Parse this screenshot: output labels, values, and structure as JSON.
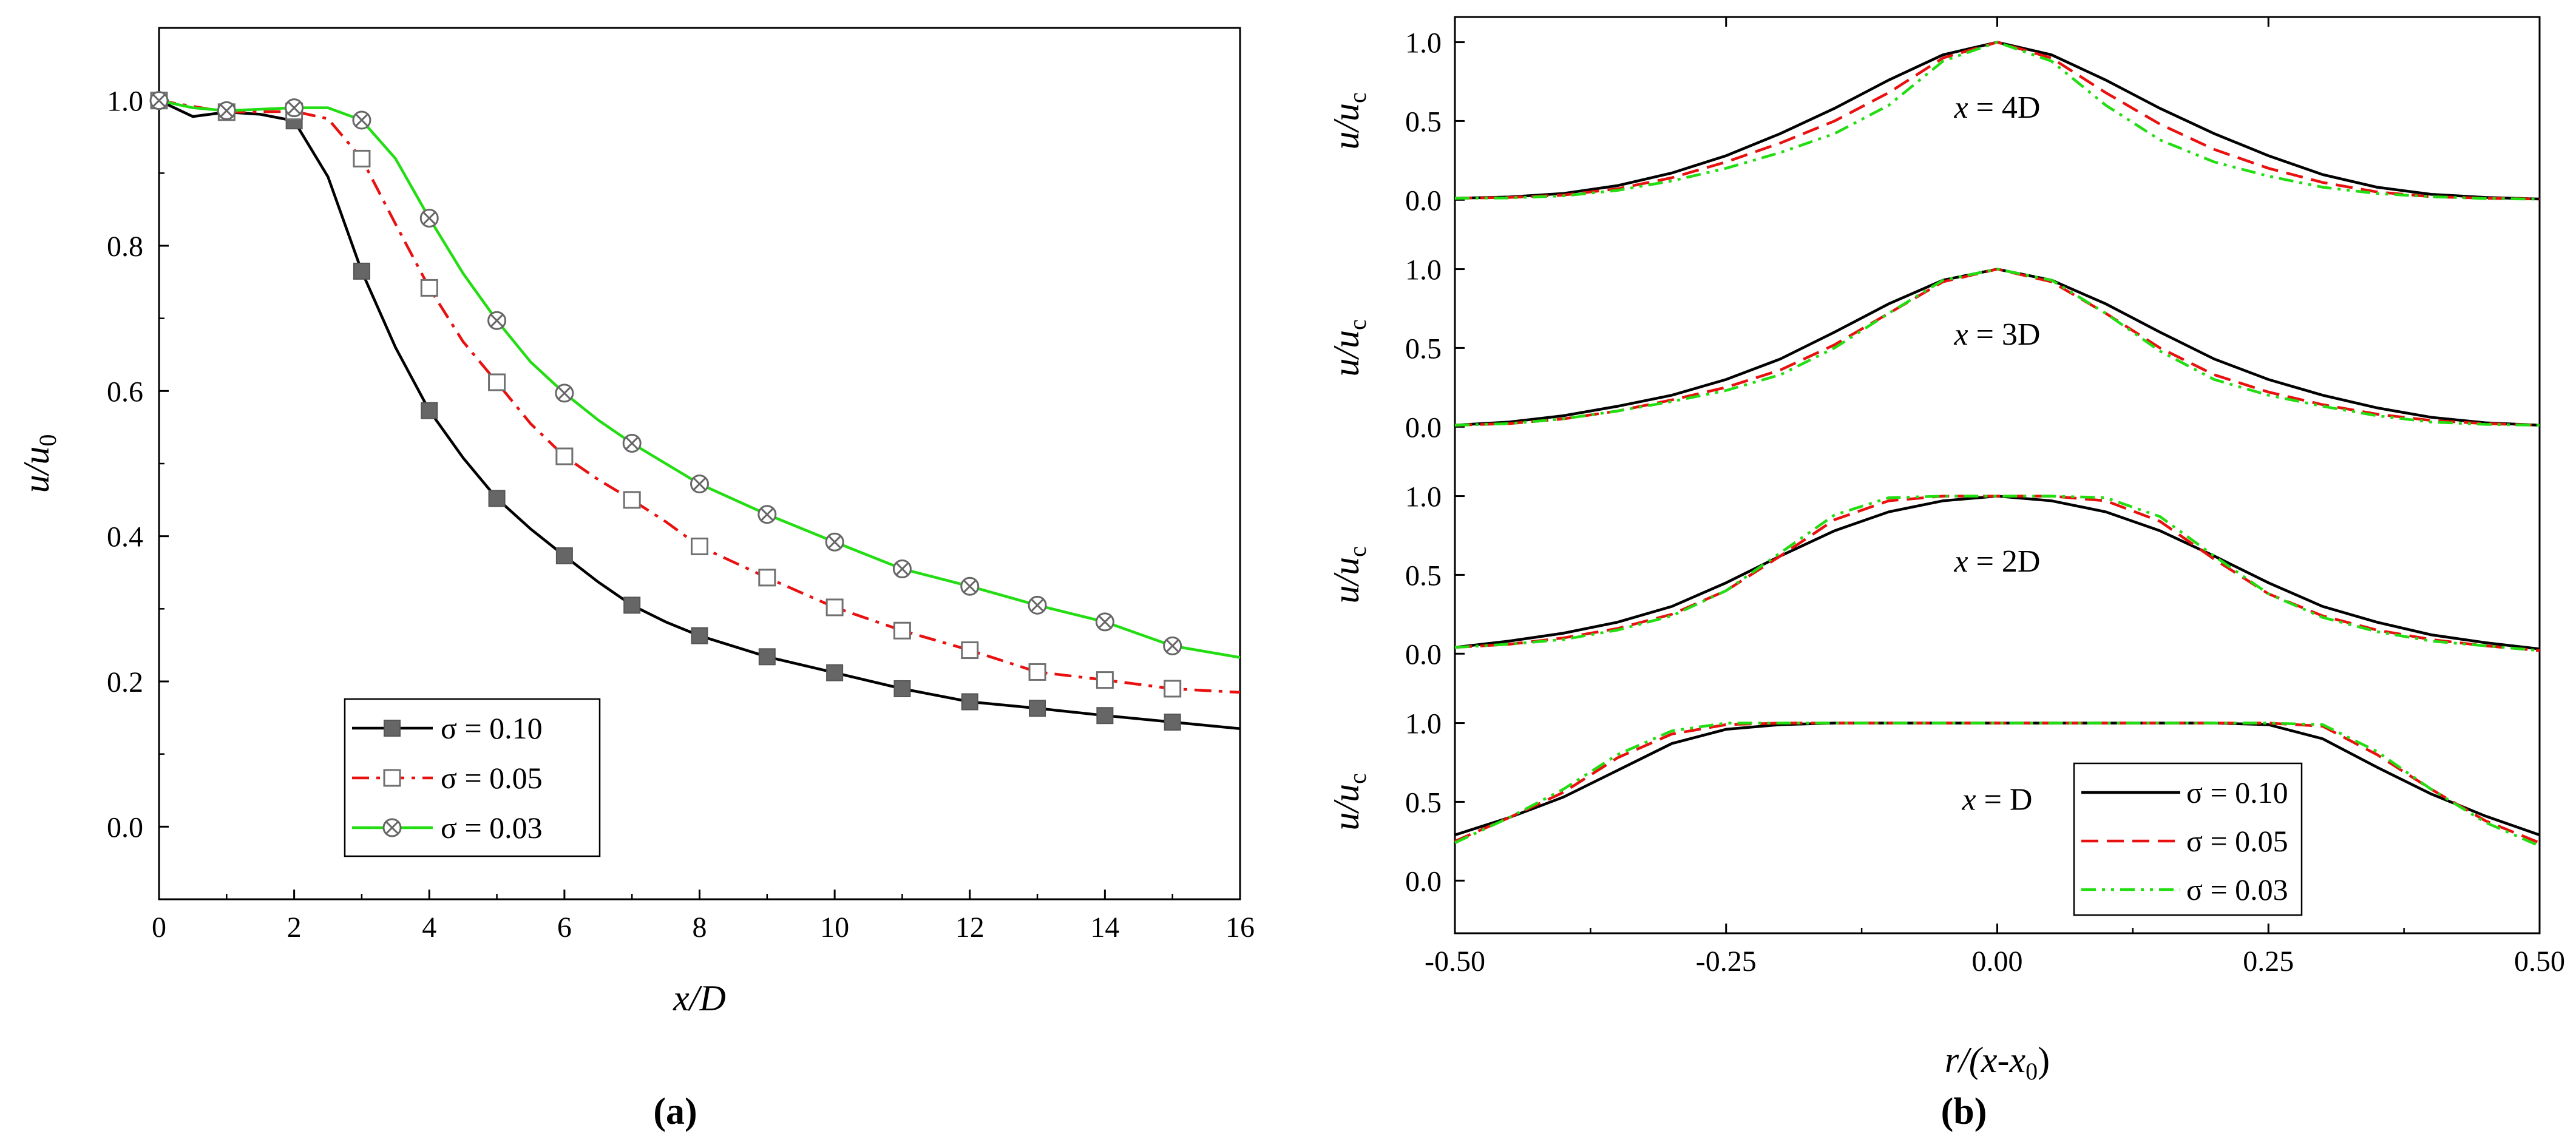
{
  "chart_data": [
    {
      "type": "line",
      "caption": "(a)",
      "xlabel": "x/D",
      "ylabel": "u/u0",
      "xlim": [
        0,
        16
      ],
      "ylim": [
        -0.1,
        1.1
      ],
      "xticks": [
        "0",
        "2",
        "4",
        "6",
        "8",
        "10",
        "12",
        "14",
        "16"
      ],
      "yticks": [
        "0.0",
        "0.2",
        "0.4",
        "0.6",
        "0.8",
        "1.0"
      ],
      "legend_position": "bottom-left",
      "series": [
        {
          "name": "σ = 0.10",
          "color": "#000000",
          "dash": "solid",
          "marker": "filled-square",
          "x": [
            0,
            0.5,
            1,
            1.5,
            2,
            2.5,
            3,
            3.5,
            4,
            4.5,
            5,
            5.5,
            6,
            6.5,
            7,
            7.5,
            8,
            9,
            10,
            11,
            12,
            13,
            14,
            15,
            16
          ],
          "y": [
            1.0,
            0.978,
            0.984,
            0.981,
            0.972,
            0.895,
            0.765,
            0.66,
            0.573,
            0.508,
            0.452,
            0.41,
            0.373,
            0.337,
            0.305,
            0.282,
            0.263,
            0.234,
            0.212,
            0.19,
            0.172,
            0.163,
            0.153,
            0.144,
            0.135
          ],
          "marker_x": [
            0,
            1,
            2,
            3,
            4,
            5,
            6,
            7,
            8,
            9,
            10,
            11,
            12,
            13,
            14,
            15
          ],
          "marker_y": [
            1.0,
            0.984,
            0.972,
            0.765,
            0.573,
            0.452,
            0.373,
            0.305,
            0.263,
            0.234,
            0.212,
            0.19,
            0.172,
            0.163,
            0.153,
            0.144
          ]
        },
        {
          "name": "σ = 0.05",
          "color": "#e8110f",
          "dash": "dash-dot",
          "marker": "open-square",
          "x": [
            0,
            1,
            2,
            2.5,
            3,
            3.5,
            4,
            4.5,
            5,
            5.5,
            6,
            6.5,
            7,
            7.5,
            8,
            9,
            10,
            11,
            12,
            13,
            14,
            15,
            16
          ],
          "y": [
            1.0,
            0.984,
            0.985,
            0.975,
            0.92,
            0.83,
            0.742,
            0.668,
            0.612,
            0.555,
            0.51,
            0.478,
            0.45,
            0.42,
            0.386,
            0.343,
            0.302,
            0.27,
            0.243,
            0.213,
            0.202,
            0.19,
            0.185
          ],
          "marker_x": [
            0,
            1,
            2,
            3,
            4,
            5,
            6,
            7,
            8,
            9,
            10,
            11,
            12,
            13,
            14,
            15
          ],
          "marker_y": [
            1.0,
            0.984,
            0.985,
            0.92,
            0.742,
            0.612,
            0.51,
            0.45,
            0.386,
            0.343,
            0.302,
            0.27,
            0.243,
            0.213,
            0.202,
            0.19
          ]
        },
        {
          "name": "σ = 0.03",
          "color": "#22dd11",
          "dash": "solid",
          "marker": "circle-x",
          "x": [
            0,
            0.5,
            1,
            1.5,
            2,
            2.5,
            3,
            3.5,
            4,
            4.5,
            5,
            5.5,
            6,
            6.5,
            7,
            7.5,
            8,
            9,
            10,
            11,
            12,
            13,
            14,
            15,
            16
          ],
          "y": [
            1.0,
            0.99,
            0.986,
            0.988,
            0.99,
            0.99,
            0.973,
            0.92,
            0.838,
            0.762,
            0.697,
            0.64,
            0.597,
            0.56,
            0.528,
            0.5,
            0.472,
            0.43,
            0.392,
            0.355,
            0.331,
            0.305,
            0.282,
            0.249,
            0.233
          ],
          "marker_x": [
            0,
            1,
            2,
            3,
            4,
            5,
            6,
            7,
            8,
            9,
            10,
            11,
            12,
            13,
            14,
            15
          ],
          "marker_y": [
            1.0,
            0.986,
            0.99,
            0.973,
            0.838,
            0.697,
            0.597,
            0.528,
            0.472,
            0.43,
            0.392,
            0.355,
            0.331,
            0.305,
            0.282,
            0.249
          ]
        }
      ]
    },
    {
      "type": "line",
      "caption": "(b)",
      "xlabel": "r/(x-x0)",
      "ylabel": "u/uc",
      "xlim": [
        -0.5,
        0.5
      ],
      "xticks": [
        "-0.50",
        "-0.25",
        "0.00",
        "0.25",
        "0.50"
      ],
      "yticks": [
        "0.0",
        "0.5",
        "1.0"
      ],
      "legend_position": "bottom-right",
      "legend": [
        {
          "name": "σ = 0.10",
          "color": "#000000",
          "dash": "solid"
        },
        {
          "name": "σ = 0.05",
          "color": "#e8110f",
          "dash": "dashed"
        },
        {
          "name": "σ = 0.03",
          "color": "#22dd11",
          "dash": "dash-dot-dot"
        }
      ],
      "panels": [
        {
          "label": "x = 4D",
          "series": [
            {
              "name": "σ = 0.10",
              "x": [
                -0.5,
                -0.45,
                -0.4,
                -0.35,
                -0.3,
                -0.25,
                -0.2,
                -0.15,
                -0.1,
                -0.05,
                0,
                0.05,
                0.1,
                0.15,
                0.2,
                0.25,
                0.3,
                0.35,
                0.4,
                0.45,
                0.5
              ],
              "y": [
                0.01,
                0.018,
                0.04,
                0.09,
                0.17,
                0.28,
                0.42,
                0.58,
                0.76,
                0.92,
                1.0,
                0.92,
                0.76,
                0.58,
                0.42,
                0.28,
                0.16,
                0.08,
                0.035,
                0.015,
                0.005
              ]
            },
            {
              "name": "σ = 0.05",
              "x": [
                -0.5,
                -0.45,
                -0.4,
                -0.35,
                -0.3,
                -0.25,
                -0.2,
                -0.15,
                -0.1,
                -0.05,
                0,
                0.05,
                0.1,
                0.15,
                0.2,
                0.25,
                0.3,
                0.35,
                0.4,
                0.45,
                0.5
              ],
              "y": [
                0.01,
                0.015,
                0.03,
                0.07,
                0.14,
                0.24,
                0.36,
                0.5,
                0.68,
                0.9,
                1.0,
                0.9,
                0.68,
                0.48,
                0.32,
                0.2,
                0.11,
                0.05,
                0.02,
                0.01,
                0.005
              ]
            },
            {
              "name": "σ = 0.03",
              "x": [
                -0.5,
                -0.45,
                -0.4,
                -0.35,
                -0.3,
                -0.25,
                -0.2,
                -0.15,
                -0.1,
                -0.05,
                0,
                0.05,
                0.1,
                0.15,
                0.2,
                0.25,
                0.3,
                0.35,
                0.4,
                0.45,
                0.5
              ],
              "y": [
                0.01,
                0.012,
                0.025,
                0.06,
                0.12,
                0.2,
                0.3,
                0.42,
                0.6,
                0.88,
                1.0,
                0.88,
                0.6,
                0.38,
                0.24,
                0.15,
                0.08,
                0.04,
                0.02,
                0.008,
                0.004
              ]
            }
          ]
        },
        {
          "label": "x = 3D",
          "series": [
            {
              "name": "σ = 0.10",
              "x": [
                -0.5,
                -0.45,
                -0.4,
                -0.35,
                -0.3,
                -0.25,
                -0.2,
                -0.15,
                -0.1,
                -0.05,
                0,
                0.05,
                0.1,
                0.15,
                0.2,
                0.25,
                0.3,
                0.35,
                0.4,
                0.45,
                0.5
              ],
              "y": [
                0.01,
                0.03,
                0.07,
                0.13,
                0.2,
                0.3,
                0.43,
                0.6,
                0.78,
                0.93,
                1.0,
                0.93,
                0.78,
                0.6,
                0.43,
                0.3,
                0.2,
                0.12,
                0.06,
                0.025,
                0.01
              ]
            },
            {
              "name": "σ = 0.05",
              "x": [
                -0.5,
                -0.45,
                -0.4,
                -0.35,
                -0.3,
                -0.25,
                -0.2,
                -0.15,
                -0.1,
                -0.05,
                0,
                0.05,
                0.1,
                0.15,
                0.2,
                0.25,
                0.3,
                0.35,
                0.4,
                0.45,
                0.5
              ],
              "y": [
                0.01,
                0.02,
                0.05,
                0.1,
                0.17,
                0.25,
                0.36,
                0.52,
                0.72,
                0.92,
                1.0,
                0.92,
                0.72,
                0.5,
                0.33,
                0.22,
                0.14,
                0.08,
                0.04,
                0.02,
                0.01
              ]
            },
            {
              "name": "σ = 0.03",
              "x": [
                -0.5,
                -0.45,
                -0.4,
                -0.35,
                -0.3,
                -0.25,
                -0.2,
                -0.15,
                -0.1,
                -0.05,
                0,
                0.05,
                0.1,
                0.15,
                0.2,
                0.25,
                0.3,
                0.35,
                0.4,
                0.45,
                0.5
              ],
              "y": [
                0.01,
                0.02,
                0.05,
                0.1,
                0.16,
                0.23,
                0.33,
                0.5,
                0.72,
                0.93,
                1.0,
                0.93,
                0.72,
                0.48,
                0.3,
                0.2,
                0.13,
                0.07,
                0.03,
                0.015,
                0.01
              ]
            }
          ]
        },
        {
          "label": "x = 2D",
          "series": [
            {
              "name": "σ = 0.10",
              "x": [
                -0.5,
                -0.45,
                -0.4,
                -0.35,
                -0.3,
                -0.25,
                -0.2,
                -0.15,
                -0.1,
                -0.05,
                0,
                0.05,
                0.1,
                0.15,
                0.2,
                0.25,
                0.3,
                0.35,
                0.4,
                0.45,
                0.5
              ],
              "y": [
                0.04,
                0.08,
                0.13,
                0.2,
                0.3,
                0.45,
                0.62,
                0.78,
                0.9,
                0.97,
                1.0,
                0.97,
                0.9,
                0.78,
                0.62,
                0.45,
                0.3,
                0.2,
                0.12,
                0.07,
                0.03
              ]
            },
            {
              "name": "σ = 0.05",
              "x": [
                -0.5,
                -0.45,
                -0.4,
                -0.35,
                -0.3,
                -0.25,
                -0.2,
                -0.15,
                -0.1,
                -0.05,
                0,
                0.05,
                0.1,
                0.15,
                0.2,
                0.25,
                0.3,
                0.35,
                0.4,
                0.45,
                0.5
              ],
              "y": [
                0.04,
                0.06,
                0.1,
                0.16,
                0.25,
                0.4,
                0.62,
                0.85,
                0.97,
                1.0,
                1.0,
                1.0,
                0.97,
                0.84,
                0.6,
                0.38,
                0.24,
                0.15,
                0.09,
                0.05,
                0.02
              ]
            },
            {
              "name": "σ = 0.03",
              "x": [
                -0.5,
                -0.45,
                -0.4,
                -0.35,
                -0.3,
                -0.25,
                -0.2,
                -0.15,
                -0.1,
                -0.05,
                0,
                0.05,
                0.1,
                0.15,
                0.2,
                0.25,
                0.3,
                0.35,
                0.4,
                0.45,
                0.5
              ],
              "y": [
                0.04,
                0.06,
                0.09,
                0.15,
                0.24,
                0.4,
                0.64,
                0.88,
                0.99,
                1.0,
                1.0,
                1.0,
                0.99,
                0.87,
                0.62,
                0.38,
                0.23,
                0.14,
                0.08,
                0.05,
                0.02
              ]
            }
          ]
        },
        {
          "label": "x = D",
          "series": [
            {
              "name": "σ = 0.10",
              "x": [
                -0.5,
                -0.45,
                -0.4,
                -0.35,
                -0.3,
                -0.25,
                -0.2,
                -0.15,
                -0.1,
                -0.05,
                0,
                0.05,
                0.1,
                0.15,
                0.2,
                0.25,
                0.3,
                0.35,
                0.4,
                0.45,
                0.5
              ],
              "y": [
                0.29,
                0.4,
                0.53,
                0.7,
                0.87,
                0.96,
                0.99,
                1.0,
                1.0,
                1.0,
                1.0,
                1.0,
                1.0,
                1.0,
                1.0,
                0.99,
                0.9,
                0.72,
                0.55,
                0.41,
                0.29
              ]
            },
            {
              "name": "σ = 0.05",
              "x": [
                -0.5,
                -0.45,
                -0.4,
                -0.35,
                -0.3,
                -0.25,
                -0.2,
                -0.15,
                -0.1,
                -0.05,
                0,
                0.05,
                0.1,
                0.15,
                0.2,
                0.25,
                0.3,
                0.35,
                0.4,
                0.45,
                0.5
              ],
              "y": [
                0.25,
                0.4,
                0.56,
                0.78,
                0.93,
                0.99,
                1.0,
                1.0,
                1.0,
                1.0,
                1.0,
                1.0,
                1.0,
                1.0,
                1.0,
                1.0,
                0.98,
                0.8,
                0.58,
                0.38,
                0.24
              ]
            },
            {
              "name": "σ = 0.03",
              "x": [
                -0.5,
                -0.45,
                -0.4,
                -0.35,
                -0.3,
                -0.25,
                -0.2,
                -0.15,
                -0.1,
                -0.05,
                0,
                0.05,
                0.1,
                0.15,
                0.2,
                0.25,
                0.3,
                0.35,
                0.4,
                0.45,
                0.5
              ],
              "y": [
                0.24,
                0.4,
                0.58,
                0.8,
                0.95,
                1.0,
                1.0,
                1.0,
                1.0,
                1.0,
                1.0,
                1.0,
                1.0,
                1.0,
                1.0,
                1.0,
                0.99,
                0.82,
                0.58,
                0.37,
                0.22
              ]
            }
          ]
        }
      ]
    }
  ]
}
